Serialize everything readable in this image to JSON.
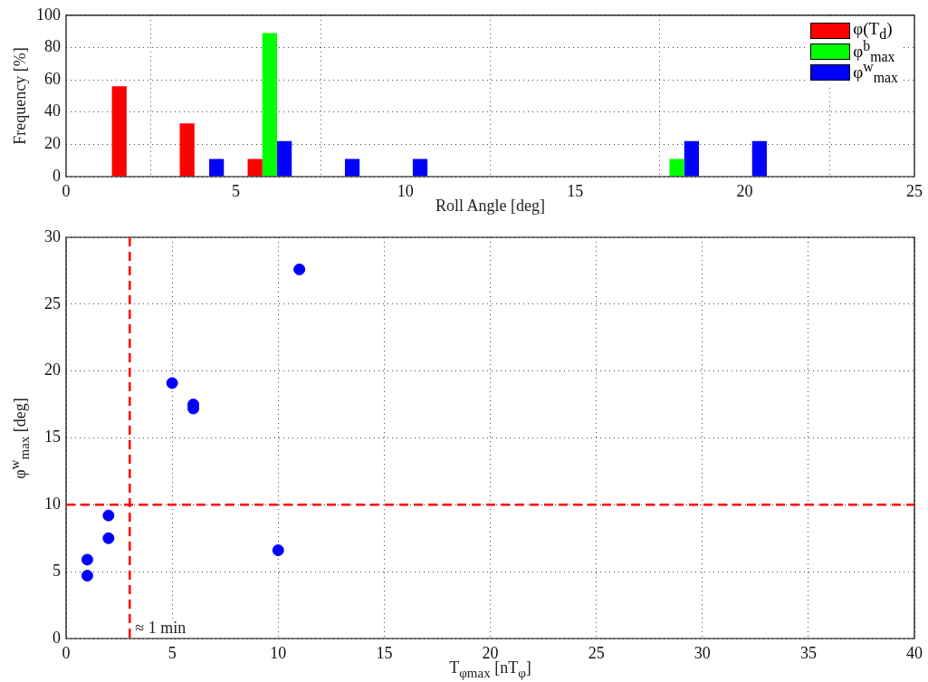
{
  "chart_data": [
    {
      "type": "bar",
      "xlabel": "Roll Angle [deg]",
      "ylabel": "Frequency [%]",
      "x": [
        1,
        2,
        3,
        4,
        5,
        6,
        7,
        8,
        9,
        10,
        11,
        12,
        13,
        14,
        15,
        16,
        17,
        18,
        19,
        20,
        21,
        22,
        23,
        24
      ],
      "series": [
        {
          "name": "φ(T$_{d}$)",
          "color": "#ff0000",
          "values": [
            0,
            56,
            0,
            33,
            0,
            11,
            0,
            0,
            0,
            0,
            0,
            0,
            0,
            0,
            0,
            0,
            0,
            0,
            0,
            0,
            0,
            0,
            0,
            0
          ]
        },
        {
          "name": "φ$^{b}$$_{max}$",
          "color": "#00ff00",
          "values": [
            0,
            0,
            0,
            0,
            0,
            89,
            0,
            0,
            0,
            0,
            0,
            0,
            0,
            0,
            0,
            0,
            0,
            11,
            0,
            0,
            0,
            0,
            0,
            0
          ]
        },
        {
          "name": "φ$^{w}$$_{max}$",
          "color": "#0000ff",
          "values": [
            0,
            0,
            0,
            11,
            0,
            22,
            0,
            11,
            0,
            11,
            0,
            0,
            0,
            0,
            0,
            0,
            0,
            22,
            0,
            22,
            0,
            0,
            0,
            0
          ]
        }
      ],
      "xlim": [
        0,
        25
      ],
      "xticks": [
        0,
        5,
        10,
        15,
        20,
        25
      ],
      "ylim": [
        0,
        100
      ],
      "yticks": [
        0,
        20,
        40,
        60,
        80,
        100
      ],
      "grid": true,
      "legend": "top right"
    },
    {
      "type": "scatter",
      "xlabel": "T$_{φmax}$ [nT$_{φ}$]",
      "ylabel": "φ$^{w}$$_{max}$ [deg]",
      "x": [
        1,
        1,
        2,
        2,
        5,
        6,
        6,
        10,
        11
      ],
      "values": [
        5.9,
        4.7,
        9.2,
        7.5,
        19.1,
        17.5,
        17.2,
        6.6,
        27.6
      ],
      "color": "#0000ff",
      "marker": "circle",
      "xlim": [
        0,
        40
      ],
      "xticks": [
        0,
        5,
        10,
        15,
        20,
        25,
        30,
        35,
        40
      ],
      "ylim": [
        0,
        30
      ],
      "yticks": [
        0,
        5,
        10,
        15,
        20,
        25,
        30
      ],
      "grid": true,
      "ref_lines": [
        {
          "axis": "x",
          "value": 3,
          "label": "≈ 1 min",
          "color": "#ff0000",
          "line_style": "dashed"
        },
        {
          "axis": "y",
          "value": 10,
          "color": "#ff0000",
          "line_style": "dashed"
        }
      ]
    }
  ]
}
